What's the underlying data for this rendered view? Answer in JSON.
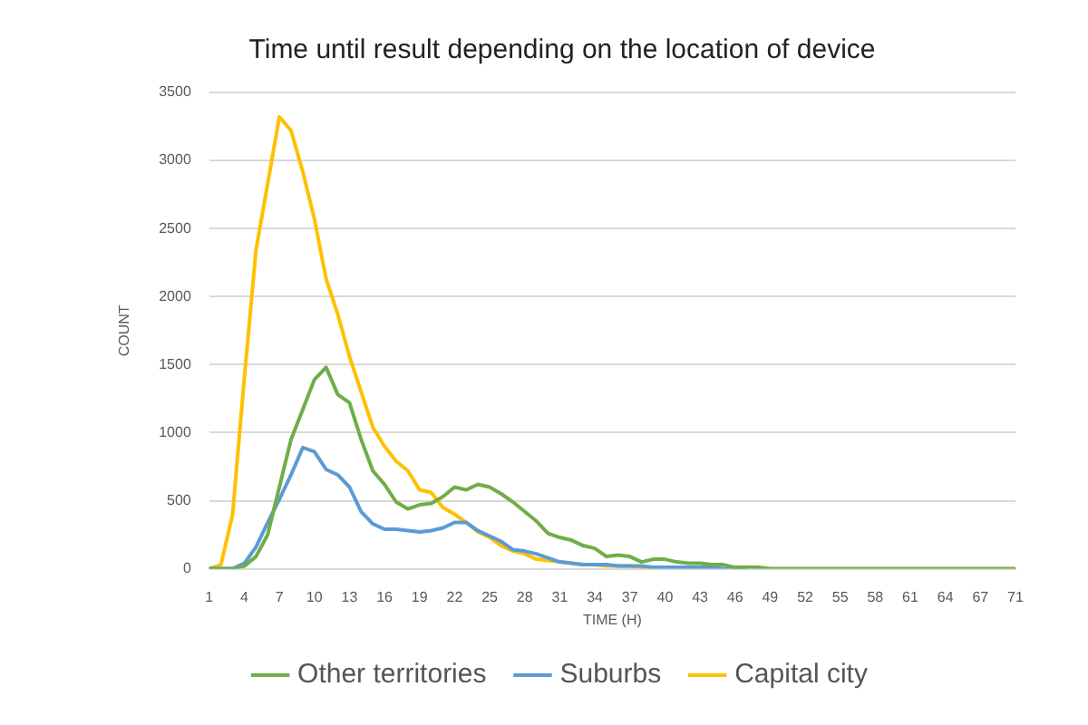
{
  "chart_data": {
    "type": "line",
    "title": "Time until result depending on the location of device",
    "xlabel": "TIME (H)",
    "ylabel": "COUNT",
    "categories": [
      "1",
      null,
      null,
      "4",
      null,
      null,
      "7",
      null,
      null,
      "10",
      null,
      null,
      "13",
      null,
      null,
      "16",
      null,
      null,
      "19",
      null,
      null,
      "22",
      null,
      null,
      "25",
      null,
      null,
      "28",
      null,
      null,
      "31",
      null,
      null,
      "34",
      null,
      null,
      "37",
      null,
      null,
      "40",
      null,
      null,
      "43",
      null,
      null,
      "46",
      null,
      null,
      "49",
      null,
      null,
      "52",
      null,
      null,
      "55",
      null,
      null,
      "58",
      null,
      null,
      "61",
      null,
      null,
      "64",
      null,
      null,
      "67",
      null,
      null,
      "71"
    ],
    "series": [
      {
        "name": "Other territories",
        "color": "#70ad47",
        "values": [
          0,
          0,
          0,
          20,
          90,
          250,
          600,
          950,
          1170,
          1390,
          1480,
          1280,
          1220,
          950,
          720,
          620,
          490,
          440,
          470,
          480,
          530,
          600,
          580,
          620,
          600,
          550,
          490,
          420,
          350,
          260,
          230,
          210,
          170,
          150,
          90,
          100,
          90,
          50,
          70,
          70,
          50,
          40,
          40,
          30,
          30,
          10,
          10,
          10,
          0,
          0,
          0,
          0,
          0,
          0,
          0,
          0,
          0,
          0,
          0,
          0,
          0,
          0,
          0,
          0,
          0,
          0,
          0,
          0,
          0,
          0
        ]
      },
      {
        "name": "Suburbs",
        "color": "#5b9bd5",
        "values": [
          0,
          0,
          0,
          40,
          160,
          340,
          510,
          690,
          890,
          860,
          730,
          690,
          600,
          420,
          330,
          290,
          290,
          280,
          270,
          280,
          300,
          340,
          340,
          280,
          240,
          200,
          140,
          130,
          110,
          80,
          50,
          40,
          30,
          30,
          30,
          20,
          20,
          20,
          10,
          10,
          10,
          10,
          10,
          10,
          0,
          0,
          0,
          null,
          null,
          null,
          null,
          null,
          null,
          null,
          null,
          null,
          null,
          null,
          null,
          null,
          null,
          null,
          null,
          null,
          null,
          null,
          null,
          null,
          null,
          null
        ]
      },
      {
        "name": "Capital city",
        "color": "#ffc000",
        "values": [
          0,
          30,
          400,
          1400,
          2340,
          2830,
          3320,
          3220,
          2920,
          2570,
          2130,
          1870,
          1560,
          1300,
          1040,
          900,
          790,
          720,
          580,
          560,
          450,
          400,
          340,
          270,
          230,
          170,
          130,
          110,
          70,
          60,
          50,
          40,
          30,
          30,
          20,
          20,
          20,
          10,
          10,
          null,
          null,
          null,
          null,
          null,
          null,
          null,
          null,
          null,
          null,
          null,
          null,
          null,
          null,
          null,
          null,
          null,
          null,
          null,
          null,
          null,
          null,
          null,
          null,
          null,
          null,
          null,
          null,
          null,
          null,
          null
        ]
      }
    ],
    "ylim": [
      0,
      3500
    ],
    "yticks": [
      0,
      500,
      1000,
      1500,
      2000,
      2500,
      3000,
      3500
    ],
    "grid": "y",
    "legend": "bottom",
    "marker": "none",
    "line_style": "solid"
  }
}
